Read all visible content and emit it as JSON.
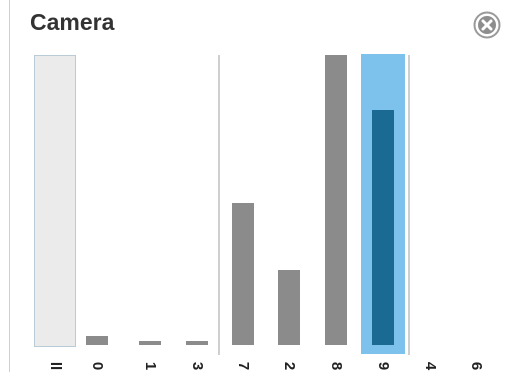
{
  "header": {
    "title": "Camera",
    "close_icon": "close-circle-x-icon"
  },
  "colors": {
    "bar": "#8b8b8b",
    "selected_highlight": "#7dc2ec",
    "selected_bar": "#1b6a93",
    "all_column": "#ebebec"
  },
  "histogram": {
    "max": 100,
    "items": [
      {
        "label": "ll",
        "value": 0,
        "kind": "all"
      },
      {
        "label": "0",
        "value": 3,
        "kind": "bar"
      },
      {
        "label": "1",
        "value": 1.5,
        "kind": "bar"
      },
      {
        "label": "3",
        "value": 1.5,
        "kind": "bar"
      },
      {
        "label": "7",
        "value": 49,
        "kind": "bar"
      },
      {
        "label": "2",
        "value": 26,
        "kind": "bar"
      },
      {
        "label": "8",
        "value": 100,
        "kind": "bar"
      },
      {
        "label": "9",
        "value": 81,
        "kind": "selected"
      },
      {
        "label": "4",
        "value": 0,
        "kind": "bar"
      },
      {
        "label": "6",
        "value": 0,
        "kind": "bar"
      }
    ]
  }
}
